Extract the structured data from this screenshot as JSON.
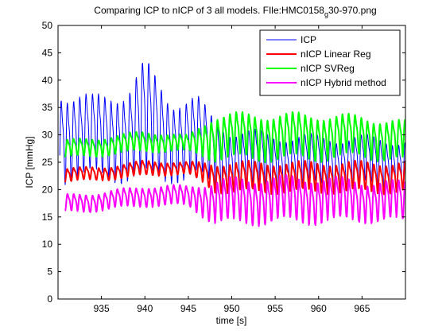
{
  "chart_data": {
    "type": "line",
    "title_main": "Comparing ICP to nICP of 3 all models. FIle:HMC0158",
    "title_sub": "g",
    "title_tail": "30-970.png",
    "xlabel": "time [s]",
    "ylabel": "ICP [mmHg]",
    "xlim": [
      930,
      970
    ],
    "ylim": [
      0,
      50
    ],
    "xticks": [
      935,
      940,
      945,
      950,
      955,
      960,
      965
    ],
    "yticks": [
      0,
      5,
      10,
      15,
      20,
      25,
      30,
      35,
      40,
      45,
      50
    ],
    "grid": false,
    "legend_position": "top-right",
    "series": [
      {
        "name": "ICP",
        "color": "#0000ff",
        "stroke_width": 1,
        "x_start": 930.2,
        "x_end": 970,
        "pulse_period": 0.72,
        "baseline": [
          [
            930.2,
            31
          ],
          [
            934,
            30
          ],
          [
            938,
            31
          ],
          [
            940,
            33
          ],
          [
            943,
            30
          ],
          [
            946,
            30
          ],
          [
            948,
            27
          ],
          [
            950,
            26
          ],
          [
            955,
            25.5
          ],
          [
            960,
            25.5
          ],
          [
            965,
            25.5
          ],
          [
            970,
            25
          ]
        ],
        "amplitude": [
          [
            930.2,
            9
          ],
          [
            934,
            8
          ],
          [
            938,
            9
          ],
          [
            940,
            12
          ],
          [
            943,
            8
          ],
          [
            946,
            8
          ],
          [
            948,
            7
          ],
          [
            950,
            6
          ],
          [
            955,
            5.5
          ],
          [
            960,
            5
          ],
          [
            965,
            5
          ],
          [
            970,
            5
          ]
        ]
      },
      {
        "name": "nICP Linear Reg",
        "color": "#ff0000",
        "stroke_width": 2,
        "x_start": 930.8,
        "x_end": 970,
        "pulse_period": 0.72,
        "baseline": [
          [
            930.8,
            22.8
          ],
          [
            935,
            23
          ],
          [
            940,
            24
          ],
          [
            945,
            24
          ],
          [
            948,
            22.5
          ],
          [
            950,
            22.5
          ],
          [
            955,
            22.5
          ],
          [
            960,
            22.5
          ],
          [
            965,
            22.5
          ],
          [
            970,
            22.5
          ]
        ],
        "amplitude": [
          [
            930.8,
            1.4
          ],
          [
            935,
            1.3
          ],
          [
            940,
            1.5
          ],
          [
            945,
            1.2
          ],
          [
            948,
            2.8
          ],
          [
            950,
            3
          ],
          [
            955,
            3
          ],
          [
            960,
            3
          ],
          [
            965,
            3
          ],
          [
            970,
            3
          ]
        ]
      },
      {
        "name": "nICP SVReg",
        "color": "#00ff00",
        "stroke_width": 2,
        "x_start": 930.8,
        "x_end": 970,
        "pulse_period": 0.72,
        "baseline": [
          [
            930.8,
            27.5
          ],
          [
            935,
            28
          ],
          [
            940,
            29
          ],
          [
            945,
            28.5
          ],
          [
            948,
            30
          ],
          [
            950,
            30
          ],
          [
            955,
            30
          ],
          [
            960,
            30
          ],
          [
            965,
            30
          ],
          [
            970,
            29
          ]
        ],
        "amplitude": [
          [
            930.8,
            1.8
          ],
          [
            935,
            1.8
          ],
          [
            940,
            2
          ],
          [
            945,
            1.6
          ],
          [
            948,
            4.5
          ],
          [
            950,
            4.5
          ],
          [
            955,
            4.5
          ],
          [
            960,
            4.5
          ],
          [
            965,
            4
          ],
          [
            970,
            4
          ]
        ]
      },
      {
        "name": "nICP Hybrid method",
        "color": "#ff00ff",
        "stroke_width": 2,
        "x_start": 930.8,
        "x_end": 970,
        "pulse_period": 0.72,
        "baseline": [
          [
            930.8,
            17.5
          ],
          [
            935,
            18
          ],
          [
            940,
            19
          ],
          [
            945,
            19
          ],
          [
            948,
            18
          ],
          [
            950,
            18.2
          ],
          [
            955,
            18.5
          ],
          [
            960,
            18.5
          ],
          [
            965,
            18.3
          ],
          [
            970,
            18
          ]
        ],
        "amplitude": [
          [
            930.8,
            1.8
          ],
          [
            935,
            1.8
          ],
          [
            940,
            2
          ],
          [
            945,
            2
          ],
          [
            948,
            4.2
          ],
          [
            950,
            4.5
          ],
          [
            955,
            4.5
          ],
          [
            960,
            4.5
          ],
          [
            965,
            4
          ],
          [
            970,
            4
          ]
        ]
      }
    ]
  }
}
